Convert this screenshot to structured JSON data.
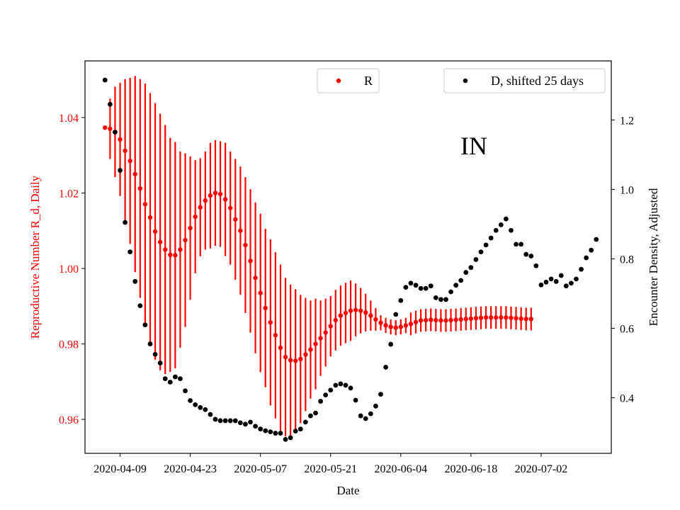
{
  "chart_data": {
    "type": "scatter",
    "xlabel": "Date",
    "ylabel_left": "Reproductive Number R_d, Daily",
    "ylabel_right": "Encounter Density, Adjusted",
    "annotation": "IN",
    "x_ticks": [
      "2020-04-09",
      "2020-04-23",
      "2020-05-07",
      "2020-05-21",
      "2020-06-04",
      "2020-06-18",
      "2020-07-02"
    ],
    "y_left_ticks": [
      "0.96",
      "0.98",
      "1.00",
      "1.02",
      "1.04"
    ],
    "y_right_ticks": [
      "0.4",
      "0.6",
      "0.8",
      "1.0",
      "1.2"
    ],
    "x_range": [
      "2020-04-02",
      "2020-07-16"
    ],
    "y_left_range": [
      0.951,
      1.055
    ],
    "y_right_range": [
      0.24,
      1.37
    ],
    "legend": [
      {
        "label": "R",
        "color": "#ff0000",
        "placement": "upper-center"
      },
      {
        "label": "D, shifted 25 days",
        "color": "#000000",
        "placement": "upper-right"
      }
    ],
    "colors": {
      "R": "#ff0000",
      "D": "#000000",
      "left_axis": "#ff0000",
      "right_axis": "#000000"
    },
    "series": [
      {
        "name": "R",
        "axis": "left",
        "x_start": "2020-04-06",
        "values": [
          1.0373,
          1.037,
          1.0362,
          1.0342,
          1.0312,
          1.0285,
          1.025,
          1.0212,
          1.017,
          1.0135,
          1.0098,
          1.007,
          1.005,
          1.0036,
          1.0035,
          1.005,
          1.0075,
          1.0107,
          1.0137,
          1.0162,
          1.018,
          1.0193,
          1.02,
          1.0197,
          1.0183,
          1.016,
          1.013,
          1.01,
          1.0062,
          1.002,
          0.9975,
          0.9935,
          0.9895,
          0.9857,
          0.9823,
          0.979,
          0.9765,
          0.9757,
          0.9755,
          0.976,
          0.9772,
          0.9785,
          0.98,
          0.9815,
          0.983,
          0.9847,
          0.9863,
          0.9875,
          0.9882,
          0.9888,
          0.989,
          0.9888,
          0.9883,
          0.9875,
          0.9865,
          0.9856,
          0.9849,
          0.9845,
          0.9843,
          0.9845,
          0.9849,
          0.9853,
          0.9858,
          0.9862,
          0.9863,
          0.9864,
          0.9863,
          0.9862,
          0.9862,
          0.9863,
          0.9864,
          0.9865,
          0.9866,
          0.9867,
          0.9868,
          0.9869,
          0.987,
          0.987,
          0.987,
          0.987,
          0.987,
          0.9869,
          0.9868,
          0.9867,
          0.9866,
          0.9866
        ],
        "err": [
          0.0,
          0.008,
          0.012,
          0.015,
          0.019,
          0.022,
          0.026,
          0.029,
          0.032,
          0.033,
          0.034,
          0.034,
          0.033,
          0.031,
          0.03,
          0.026,
          0.023,
          0.019,
          0.015,
          0.013,
          0.013,
          0.014,
          0.014,
          0.014,
          0.015,
          0.015,
          0.016,
          0.017,
          0.018,
          0.019,
          0.02,
          0.021,
          0.021,
          0.022,
          0.022,
          0.022,
          0.021,
          0.02,
          0.019,
          0.017,
          0.015,
          0.013,
          0.012,
          0.01,
          0.009,
          0.008,
          0.008,
          0.008,
          0.008,
          0.008,
          0.007,
          0.006,
          0.005,
          0.004,
          0.003,
          0.002,
          0.002,
          0.002,
          0.002,
          0.002,
          0.002,
          0.003,
          0.003,
          0.003,
          0.003,
          0.003,
          0.003,
          0.003,
          0.003,
          0.003,
          0.003,
          0.003,
          0.003,
          0.003,
          0.003,
          0.003,
          0.003,
          0.003,
          0.003,
          0.003,
          0.003,
          0.003,
          0.003,
          0.003,
          0.003,
          0.003
        ]
      },
      {
        "name": "D, shifted 25 days",
        "axis": "right",
        "x_start": "2020-04-06",
        "values": [
          1.315,
          1.245,
          1.165,
          1.055,
          0.905,
          0.82,
          0.735,
          0.665,
          0.61,
          0.555,
          0.525,
          0.5,
          0.455,
          0.445,
          0.46,
          0.455,
          0.42,
          0.392,
          0.38,
          0.372,
          0.366,
          0.352,
          0.338,
          0.334,
          0.334,
          0.334,
          0.334,
          0.328,
          0.324,
          0.33,
          0.318,
          0.31,
          0.305,
          0.302,
          0.298,
          0.298,
          0.28,
          0.285,
          0.304,
          0.31,
          0.33,
          0.348,
          0.356,
          0.39,
          0.408,
          0.422,
          0.436,
          0.44,
          0.436,
          0.428,
          0.393,
          0.348,
          0.34,
          0.354,
          0.376,
          0.41,
          0.488,
          0.554,
          0.64,
          0.68,
          0.718,
          0.73,
          0.724,
          0.715,
          0.715,
          0.722,
          0.688,
          0.683,
          0.683,
          0.705,
          0.724,
          0.738,
          0.761,
          0.775,
          0.798,
          0.82,
          0.84,
          0.86,
          0.882,
          0.898,
          0.915,
          0.882,
          0.842,
          0.842,
          0.813,
          0.808,
          0.78,
          0.725,
          0.733,
          0.742,
          0.735,
          0.752,
          0.722,
          0.73,
          0.742,
          0.77,
          0.803,
          0.825,
          0.856
        ]
      }
    ]
  }
}
